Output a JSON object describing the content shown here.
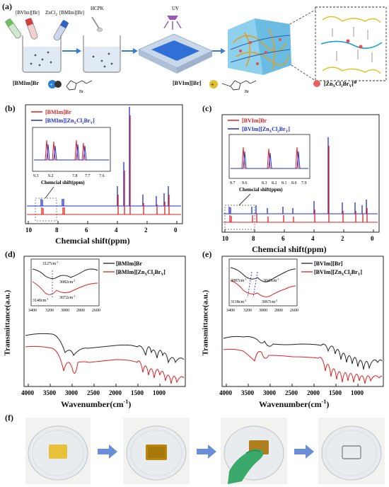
{
  "panels": {
    "a": {
      "label": "(a)",
      "reagents": [
        "[BVIm][Br]",
        "ZnCl",
        "2",
        "[BMIm][Br]"
      ],
      "hcpk": "HCPK",
      "uv": "UV",
      "legend": {
        "bmim": "[BMIm]Br",
        "bvim": "[BVIm][Br]",
        "zn": "[Zn",
        "zn_x": "X",
        "zn_cl": "Cl",
        "zn_2": "2",
        "zn_br": "Br",
        "zn_y": "Y",
        "zn_end": "]",
        "br": "Br",
        "minus": "⊖"
      }
    },
    "b": {
      "label": "(b)",
      "legend": [
        "[BMIm]Br",
        "[BMIm][Zn",
        "X",
        "Cl",
        "2",
        "Br",
        "Y",
        "]"
      ],
      "inset_label": "Chemcial shift(ppm)",
      "inset_ticks": [
        "9.3",
        "9.2",
        "7.8",
        "7.7",
        "7.6"
      ],
      "xlabel": "Chemcial shift(ppm)",
      "xticks": [
        "10",
        "8",
        "6",
        "4",
        "2",
        "0"
      ]
    },
    "c": {
      "label": "(c)",
      "legend": [
        "[BVIm]Br",
        "[BVIm][Zn",
        "X",
        "Cl",
        "2",
        "Br",
        "Y",
        "]"
      ],
      "inset_label": "Chemcial shift(ppm)",
      "inset_ticks": [
        "9.7",
        "9.6",
        "8.3",
        "8.2",
        "8.1",
        "8.0",
        "7.9"
      ],
      "xlabel": "Chemcial shift(ppm)",
      "xticks": [
        "10",
        "8",
        "6",
        "4",
        "2",
        "0"
      ]
    },
    "d": {
      "label": "(d)",
      "legend": [
        "[BMIm]Br",
        "[BMIm][Zn",
        "X",
        "Cl",
        "2",
        "Br",
        "Y",
        "]"
      ],
      "annotations": [
        "3127cm",
        "3082cm",
        "3140cm",
        "3072cm",
        "-1"
      ],
      "inset_ticks": [
        "3400",
        "3200",
        "3000",
        "2800",
        "2600"
      ],
      "ylabel": "Transmittance(a.u.)",
      "xlabel": "Wavenumber(cm",
      "xlabel_sup": "-1",
      "xlabel_end": ")",
      "xticks": [
        "4000",
        "3500",
        "3000",
        "2500",
        "2000",
        "1500",
        "1000"
      ]
    },
    "e": {
      "label": "(e)",
      "legend": [
        "[BVIm][Br]",
        "[BVIm][Zn",
        "X",
        "Cl",
        "2",
        "Br",
        "Y",
        "]"
      ],
      "annotations": [
        "3087cm",
        "3045cm",
        "3118cm",
        "3067cm",
        "-1"
      ],
      "inset_ticks": [
        "3400",
        "3200",
        "3000",
        "2800",
        "2600"
      ],
      "ylabel": "Transmittance(a.u.)",
      "xlabel": "Wavenumber(cm",
      "xlabel_sup": "-1",
      "xlabel_end": ")",
      "xticks": [
        "4000",
        "3500",
        "3000",
        "2500",
        "2000",
        "1500",
        "1000"
      ]
    },
    "f": {
      "label": "(f)"
    }
  },
  "colors": {
    "red": "#e02020",
    "blue": "#1f2fd6",
    "black": "#222222",
    "gray": "#555555"
  }
}
